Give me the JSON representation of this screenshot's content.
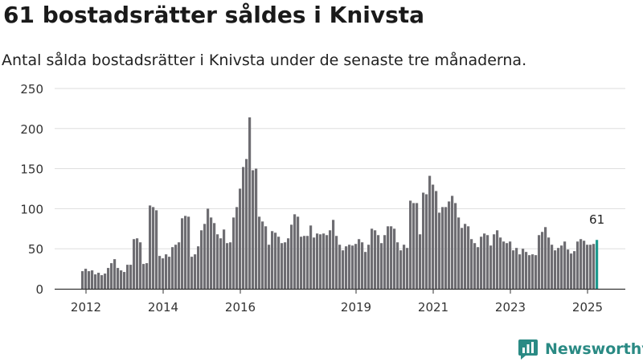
{
  "title": "61 bostadsrätter såldes i Knivsta",
  "subtitle": "Antal sålda bostadsrätter i Knivsta under de senaste tre månaderna.",
  "brand": {
    "name": "Newsworthy",
    "color": "#2a8a84",
    "icon": "newsworthy-logo-icon"
  },
  "chart_data": {
    "type": "bar",
    "bar_color": "#6e6d72",
    "highlight_color": "#1d9a8e",
    "ylim": [
      0,
      250
    ],
    "yticks": [
      0,
      50,
      100,
      150,
      200,
      250
    ],
    "x_ticks": [
      {
        "label": "2012",
        "index": 1.5
      },
      {
        "label": "2014",
        "index": 25.5
      },
      {
        "label": "2016",
        "index": 49.5
      },
      {
        "label": "2019",
        "index": 85.5
      },
      {
        "label": "2021",
        "index": 109.5
      },
      {
        "label": "2023",
        "index": 133.5
      },
      {
        "label": "2025",
        "index": 157.5
      }
    ],
    "highlight_label": "61",
    "values": [
      22,
      25,
      22,
      23,
      18,
      20,
      17,
      19,
      26,
      32,
      37,
      26,
      23,
      21,
      30,
      30,
      62,
      63,
      58,
      31,
      32,
      104,
      102,
      98,
      41,
      38,
      43,
      40,
      52,
      55,
      58,
      88,
      91,
      90,
      40,
      43,
      53,
      73,
      81,
      100,
      89,
      82,
      68,
      63,
      74,
      57,
      58,
      89,
      102,
      125,
      152,
      162,
      214,
      148,
      150,
      90,
      84,
      78,
      55,
      72,
      70,
      65,
      57,
      58,
      63,
      80,
      93,
      90,
      65,
      66,
      66,
      79,
      64,
      69,
      68,
      69,
      67,
      73,
      86,
      66,
      55,
      48,
      53,
      55,
      54,
      56,
      62,
      58,
      46,
      55,
      75,
      73,
      67,
      57,
      67,
      78,
      78,
      75,
      58,
      48,
      55,
      51,
      110,
      107,
      107,
      68,
      120,
      118,
      141,
      130,
      122,
      95,
      102,
      102,
      109,
      116,
      107,
      89,
      76,
      81,
      78,
      62,
      57,
      52,
      65,
      69,
      67,
      54,
      68,
      73,
      64,
      59,
      57,
      59,
      48,
      51,
      43,
      50,
      46,
      42,
      43,
      42,
      67,
      71,
      77,
      64,
      55,
      48,
      51,
      54,
      59,
      49,
      44,
      47,
      59,
      62,
      60,
      55,
      55,
      56,
      61
    ]
  }
}
